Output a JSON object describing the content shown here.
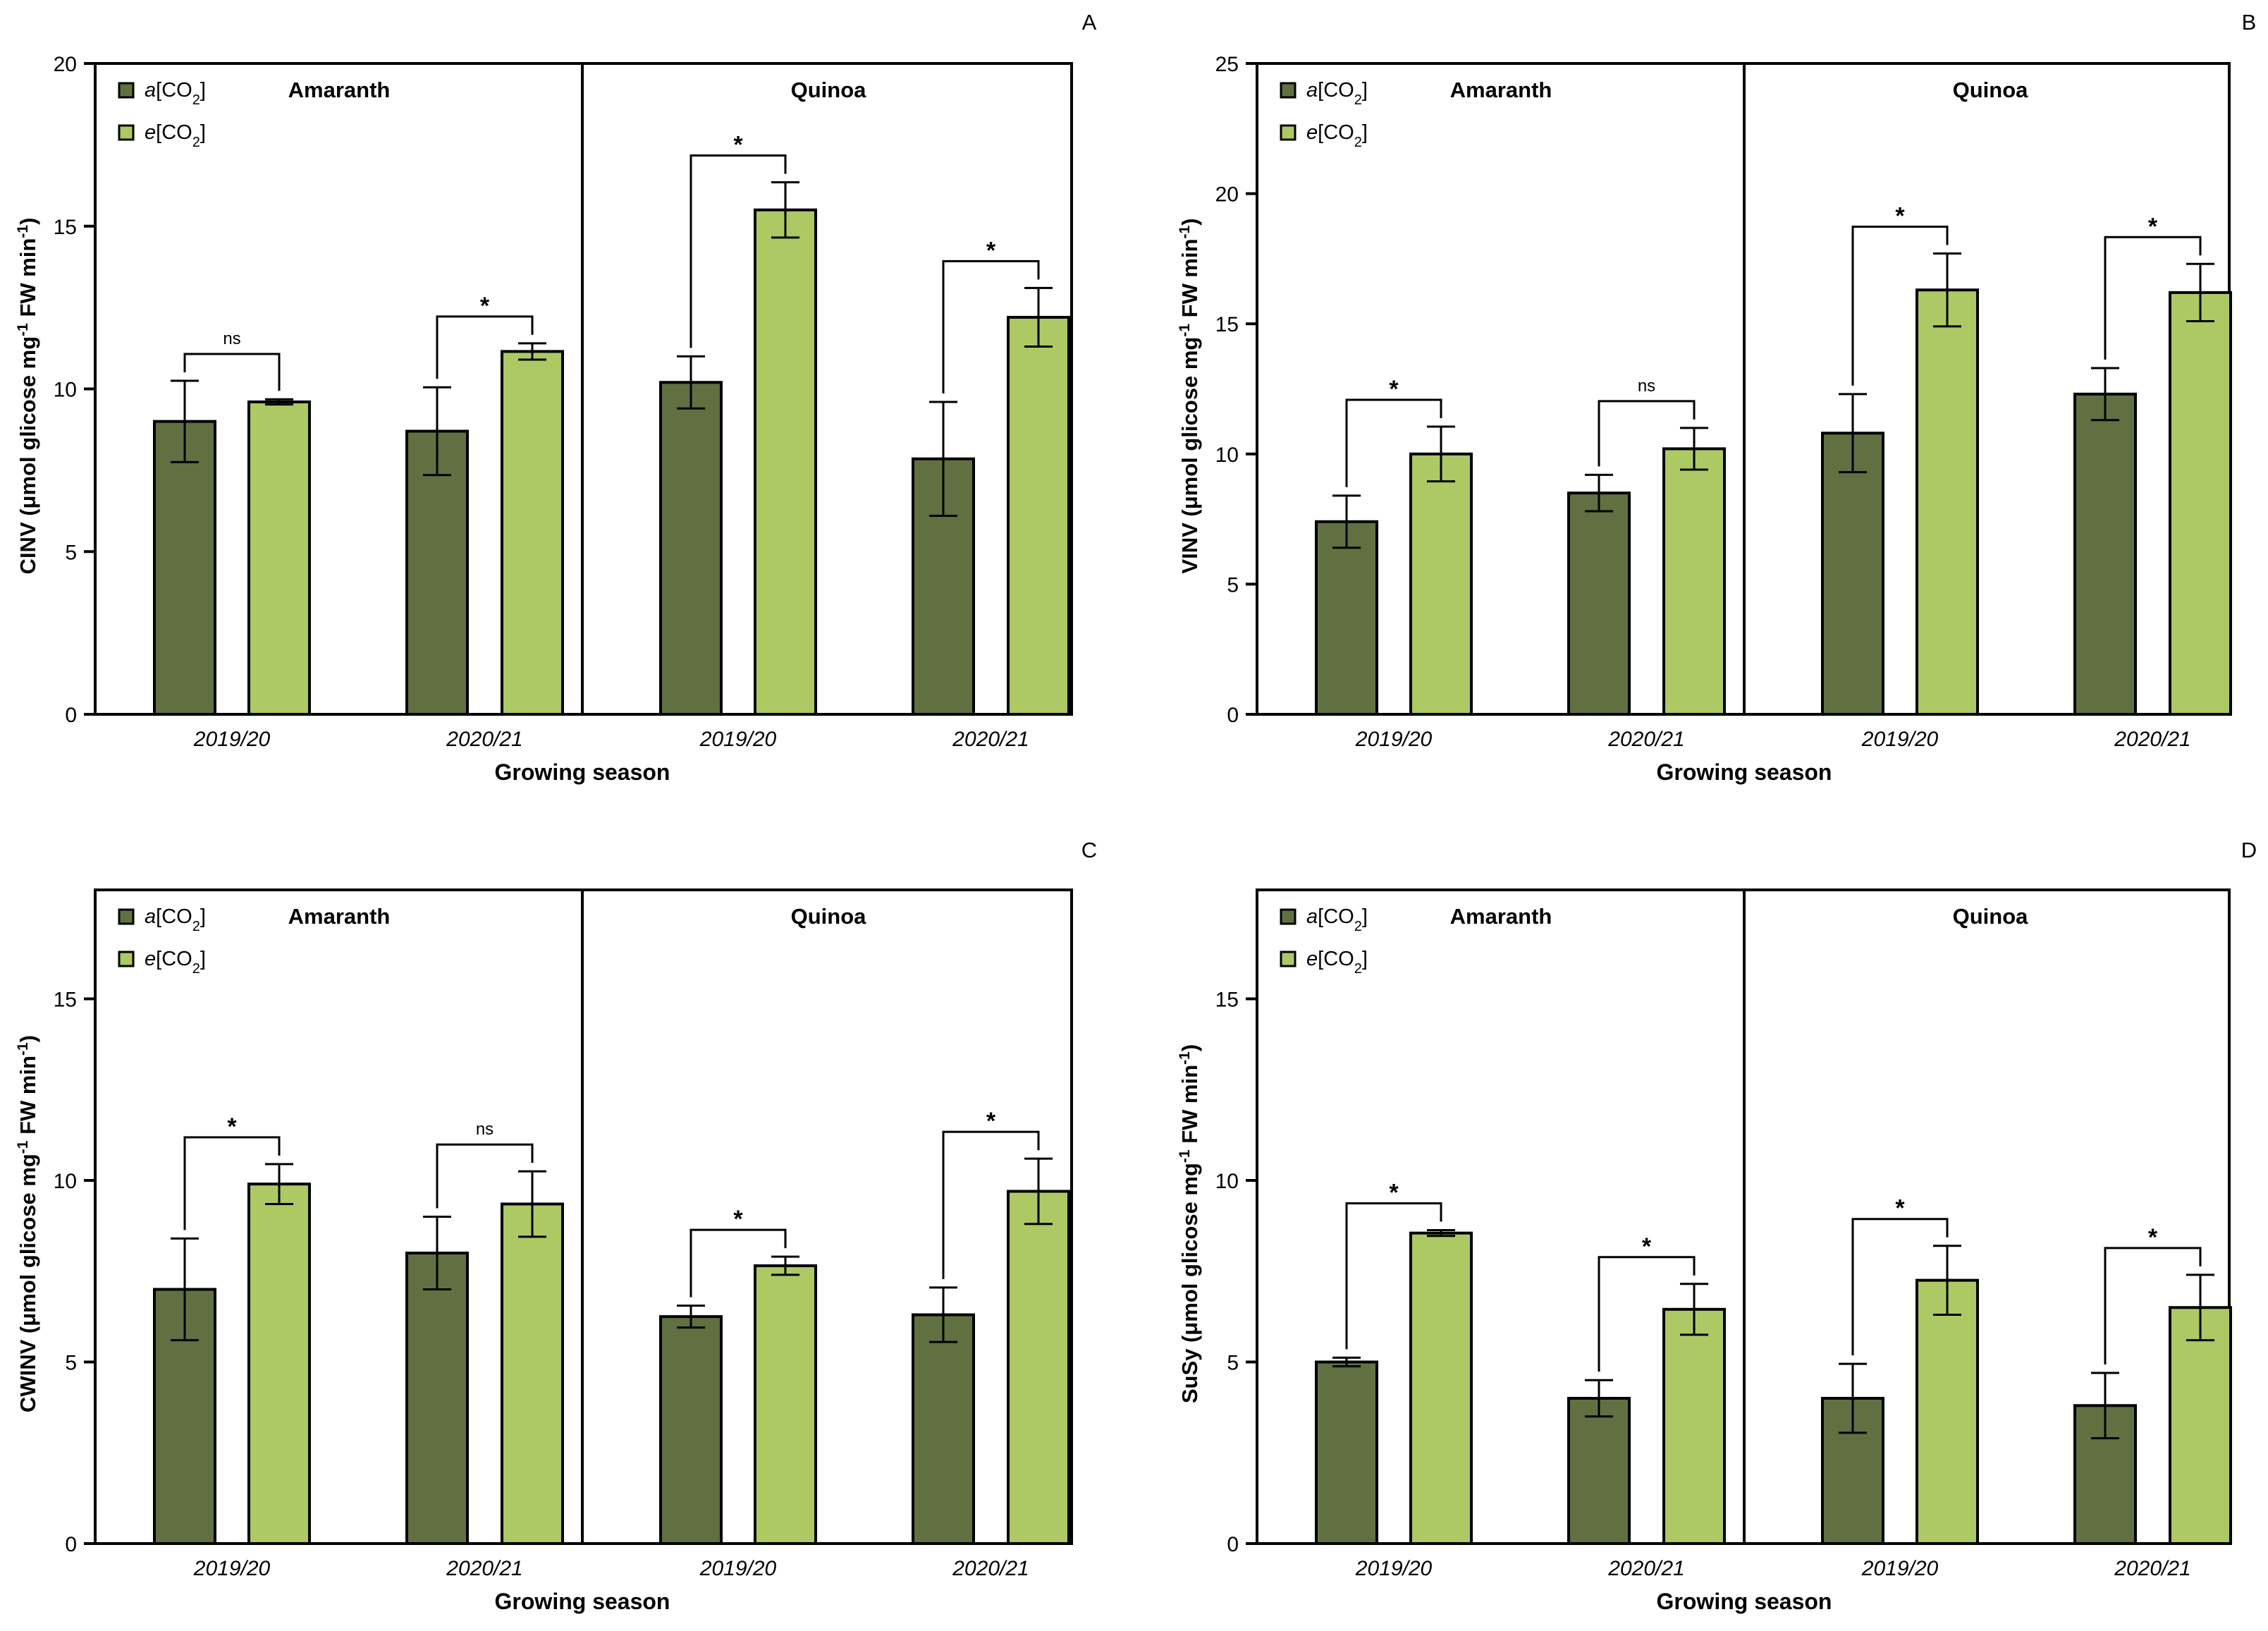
{
  "figure": {
    "colors": {
      "ambient": "#617041",
      "elevated": "#adc964",
      "stroke": "#000000"
    },
    "legend": {
      "ambient": {
        "italic": "a",
        "bracket": "[CO",
        "sub": "2",
        "close": "]"
      },
      "elevated": {
        "italic": "e",
        "bracket": "[CO",
        "sub": "2",
        "close": "]"
      }
    }
  },
  "chart_data": [
    {
      "panel": "A",
      "type": "bar",
      "ylabel": {
        "pre": "CINV (μmol glicose mg",
        "sup1": "-1",
        "mid": " FW min",
        "sup2": "-1",
        "post": ")"
      },
      "xlabel": "Growing season",
      "ylim": [
        0,
        20
      ],
      "yticks": [
        0,
        5,
        10,
        15,
        20
      ],
      "species": [
        "Amaranth",
        "Quinoa"
      ],
      "categories": [
        "2019/20",
        "2020/21",
        "2019/20",
        "2020/21"
      ],
      "series": [
        {
          "name": "a[CO2]",
          "values": [
            9.0,
            8.7,
            10.2,
            7.85
          ],
          "errors": [
            1.25,
            1.35,
            0.8,
            1.75
          ]
        },
        {
          "name": "e[CO2]",
          "values": [
            9.6,
            11.15,
            15.5,
            12.2
          ],
          "errors": [
            0.08,
            0.25,
            0.85,
            0.9
          ]
        }
      ],
      "significance": [
        "ns",
        "*",
        "*",
        "*"
      ]
    },
    {
      "panel": "B",
      "type": "bar",
      "ylabel": {
        "pre": "VINV (μmol glicose mg",
        "sup1": "-1",
        "mid": " FW min",
        "sup2": "-1",
        "post": ")"
      },
      "xlabel": "Growing season",
      "ylim": [
        0,
        25
      ],
      "yticks": [
        0,
        5,
        10,
        15,
        20,
        25
      ],
      "species": [
        "Amaranth",
        "Quinoa"
      ],
      "categories": [
        "2019/20",
        "2020/21",
        "2019/20",
        "2020/21"
      ],
      "series": [
        {
          "name": "a[CO2]",
          "values": [
            7.4,
            8.5,
            10.8,
            12.3
          ],
          "errors": [
            1.0,
            0.7,
            1.5,
            1.0
          ]
        },
        {
          "name": "e[CO2]",
          "values": [
            10.0,
            10.2,
            16.3,
            16.2
          ],
          "errors": [
            1.05,
            0.8,
            1.4,
            1.1
          ]
        }
      ],
      "significance": [
        "*",
        "ns",
        "*",
        "*"
      ]
    },
    {
      "panel": "C",
      "type": "bar",
      "ylabel": {
        "pre": "CWINV (μmol glicose mg",
        "sup1": "-1",
        "mid": " FW min",
        "sup2": "-1",
        "post": ")"
      },
      "xlabel": "Growing season",
      "ylim": [
        0,
        18
      ],
      "yticks": [
        0,
        5,
        10,
        15
      ],
      "species": [
        "Amaranth",
        "Quinoa"
      ],
      "categories": [
        "2019/20",
        "2020/21",
        "2019/20",
        "2020/21"
      ],
      "series": [
        {
          "name": "a[CO2]",
          "values": [
            7.0,
            8.0,
            6.25,
            6.3
          ],
          "errors": [
            1.4,
            1.0,
            0.3,
            0.75
          ]
        },
        {
          "name": "e[CO2]",
          "values": [
            9.9,
            9.35,
            7.65,
            9.7
          ],
          "errors": [
            0.55,
            0.9,
            0.25,
            0.9
          ]
        }
      ],
      "significance": [
        "*",
        "ns",
        "*",
        "*"
      ]
    },
    {
      "panel": "D",
      "type": "bar",
      "ylabel": {
        "pre": "SuSy (μmol glicose mg",
        "sup1": "-1",
        "mid": " FW min",
        "sup2": "-1",
        "post": ")"
      },
      "xlabel": "Growing season",
      "ylim": [
        0,
        18
      ],
      "yticks": [
        0,
        5,
        10,
        15
      ],
      "species": [
        "Amaranth",
        "Quinoa"
      ],
      "categories": [
        "2019/20",
        "2020/21",
        "2019/20",
        "2020/21"
      ],
      "series": [
        {
          "name": "a[CO2]",
          "values": [
            5.0,
            4.0,
            4.0,
            3.8
          ],
          "errors": [
            0.12,
            0.5,
            0.95,
            0.9
          ]
        },
        {
          "name": "e[CO2]",
          "values": [
            8.55,
            6.45,
            7.25,
            6.5
          ],
          "errors": [
            0.08,
            0.7,
            0.95,
            0.9
          ]
        }
      ],
      "significance": [
        "*",
        "*",
        "*",
        "*"
      ]
    }
  ]
}
